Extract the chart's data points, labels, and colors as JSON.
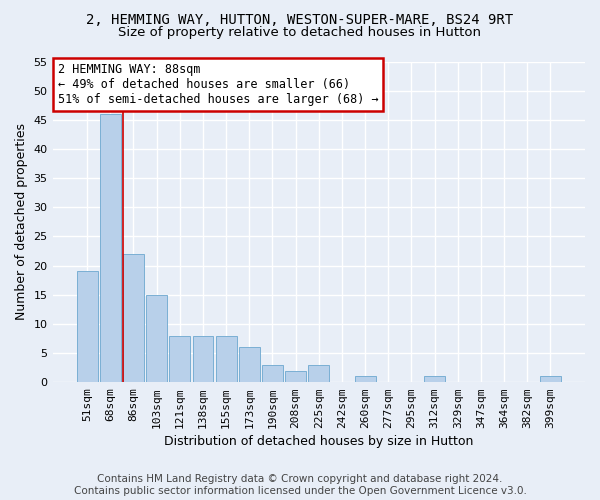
{
  "title": "2, HEMMING WAY, HUTTON, WESTON-SUPER-MARE, BS24 9RT",
  "subtitle": "Size of property relative to detached houses in Hutton",
  "xlabel": "Distribution of detached houses by size in Hutton",
  "ylabel": "Number of detached properties",
  "footer_line1": "Contains HM Land Registry data © Crown copyright and database right 2024.",
  "footer_line2": "Contains public sector information licensed under the Open Government Licence v3.0.",
  "bar_labels": [
    "51sqm",
    "68sqm",
    "86sqm",
    "103sqm",
    "121sqm",
    "138sqm",
    "155sqm",
    "173sqm",
    "190sqm",
    "208sqm",
    "225sqm",
    "242sqm",
    "260sqm",
    "277sqm",
    "295sqm",
    "312sqm",
    "329sqm",
    "347sqm",
    "364sqm",
    "382sqm",
    "399sqm"
  ],
  "bar_values": [
    19,
    46,
    22,
    15,
    8,
    8,
    8,
    6,
    3,
    2,
    3,
    0,
    1,
    0,
    0,
    1,
    0,
    0,
    0,
    0,
    1
  ],
  "bar_color": "#b8d0ea",
  "bar_edge_color": "#7aafd4",
  "vline_index": 2,
  "vline_color": "#cc0000",
  "annotation_line1": "2 HEMMING WAY: 88sqm",
  "annotation_line2": "← 49% of detached houses are smaller (66)",
  "annotation_line3": "51% of semi-detached houses are larger (68) →",
  "annotation_box_facecolor": "#ffffff",
  "annotation_box_edgecolor": "#cc0000",
  "ylim_max": 55,
  "yticks": [
    0,
    5,
    10,
    15,
    20,
    25,
    30,
    35,
    40,
    45,
    50,
    55
  ],
  "background_color": "#e8eef7",
  "grid_color": "#ffffff",
  "title_fontsize": 10,
  "subtitle_fontsize": 9.5,
  "axis_label_fontsize": 9,
  "tick_fontsize": 8,
  "annotation_fontsize": 8.5,
  "footer_fontsize": 7.5
}
